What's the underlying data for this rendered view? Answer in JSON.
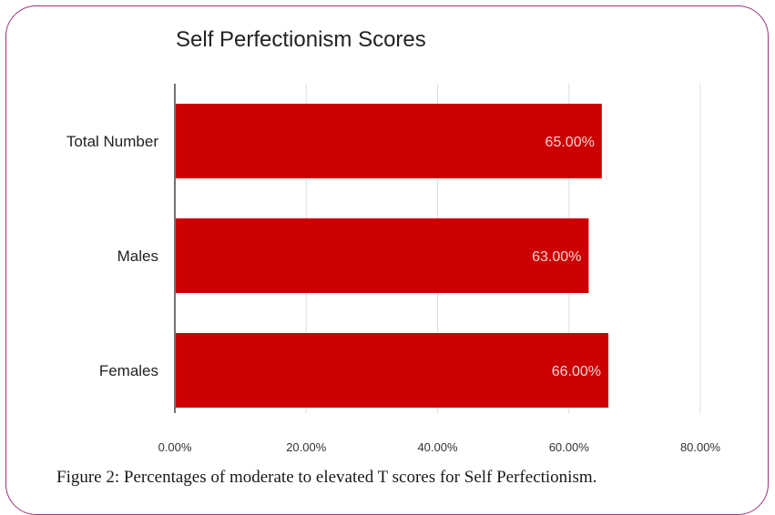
{
  "chart_data": {
    "type": "bar",
    "orientation": "horizontal",
    "title": "Self Perfectionism Scores",
    "categories": [
      "Total Number",
      "Males",
      "Females"
    ],
    "values": [
      65.0,
      63.0,
      66.0
    ],
    "data_labels": [
      "65.00%",
      "63.00%",
      "66.00%"
    ],
    "x_ticks": [
      "0.00%",
      "20.00%",
      "40.00%",
      "60.00%",
      "80.00%"
    ],
    "xlim": [
      0,
      80
    ],
    "grid": "vertical",
    "bar_color": "#cc0000",
    "label_color": "#f4d6d6"
  },
  "caption": "Figure 2: Percentages of moderate to elevated T scores for Self Perfectionism.",
  "colors": {
    "frame_border": "#a0307a",
    "gridline": "#dddddd",
    "axis": "#444444"
  }
}
